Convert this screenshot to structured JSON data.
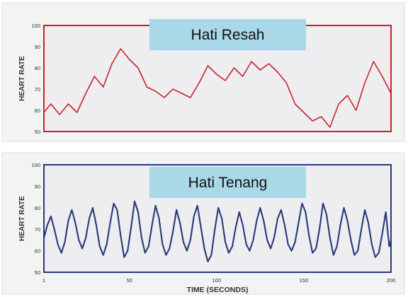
{
  "colors": {
    "panel_bg": "#f3f3f3",
    "plot_bg": "#eeeef1",
    "resah": "#c8242f",
    "tenang": "#283a78",
    "title_box": "#a9d8e8"
  },
  "chart_data": [
    {
      "type": "line",
      "title": "Hati Resah",
      "xlabel": "",
      "ylabel": "HEART RATE",
      "xlim": [
        1,
        200
      ],
      "ylim": [
        50,
        100
      ],
      "yticks": [
        "100",
        "90",
        "80",
        "70",
        "60",
        "50"
      ],
      "grid": false,
      "series": [
        {
          "x": [
            1,
            5,
            10,
            15,
            20,
            25,
            30,
            35,
            40,
            45,
            50,
            55,
            60,
            65,
            70,
            75,
            80,
            85,
            90,
            95,
            100,
            105,
            110,
            115,
            120,
            125,
            130,
            135,
            140,
            145,
            150,
            155,
            160,
            165,
            170,
            175,
            180,
            185,
            190,
            195,
            200
          ],
          "y": [
            59,
            63,
            58,
            63,
            59,
            68,
            76,
            71,
            82,
            89,
            84,
            80,
            71,
            69,
            66,
            70,
            68,
            66,
            73,
            81,
            77,
            74,
            80,
            76,
            83,
            79,
            82,
            78,
            73,
            63,
            59,
            55,
            57,
            52,
            63,
            67,
            60,
            73,
            83,
            76,
            68
          ]
        }
      ]
    },
    {
      "type": "line",
      "title": "Hati Tenang",
      "xlabel": "TIME (SECONDS)",
      "ylabel": "HEART RATE",
      "xlim": [
        1,
        200
      ],
      "ylim": [
        50,
        100
      ],
      "yticks": [
        "100",
        "90",
        "80",
        "70",
        "60",
        "50"
      ],
      "xticks": [
        "1",
        "50",
        "100",
        "150",
        "200"
      ],
      "grid": false,
      "series": [
        {
          "x": [
            1,
            3,
            5,
            7,
            9,
            11,
            13,
            15,
            17,
            19,
            21,
            23,
            25,
            27,
            29,
            31,
            33,
            35,
            37,
            39,
            41,
            43,
            45,
            47,
            49,
            51,
            53,
            55,
            57,
            59,
            61,
            63,
            65,
            67,
            69,
            71,
            73,
            75,
            77,
            79,
            81,
            83,
            85,
            87,
            89,
            91,
            93,
            95,
            97,
            99,
            101,
            103,
            105,
            107,
            109,
            111,
            113,
            115,
            117,
            119,
            121,
            123,
            125,
            127,
            129,
            131,
            133,
            135,
            137,
            139,
            141,
            143,
            145,
            147,
            149,
            151,
            153,
            155,
            157,
            159,
            161,
            163,
            165,
            167,
            169,
            171,
            173,
            175,
            177,
            179,
            181,
            183,
            185,
            187,
            189,
            191,
            193,
            195,
            197,
            199,
            200
          ],
          "y": [
            66,
            72,
            76,
            70,
            63,
            59,
            64,
            74,
            79,
            73,
            65,
            61,
            66,
            75,
            80,
            72,
            62,
            58,
            63,
            73,
            82,
            79,
            67,
            57,
            60,
            71,
            83,
            78,
            66,
            59,
            62,
            72,
            81,
            75,
            63,
            58,
            61,
            69,
            79,
            73,
            64,
            60,
            65,
            76,
            81,
            71,
            61,
            55,
            58,
            70,
            80,
            75,
            64,
            59,
            62,
            71,
            78,
            72,
            63,
            60,
            65,
            74,
            80,
            74,
            65,
            61,
            66,
            75,
            79,
            72,
            63,
            60,
            64,
            73,
            82,
            78,
            67,
            59,
            61,
            70,
            82,
            77,
            66,
            58,
            62,
            72,
            80,
            74,
            65,
            58,
            60,
            70,
            79,
            73,
            63,
            57,
            59,
            68,
            78,
            62,
            65
          ]
        }
      ]
    }
  ]
}
